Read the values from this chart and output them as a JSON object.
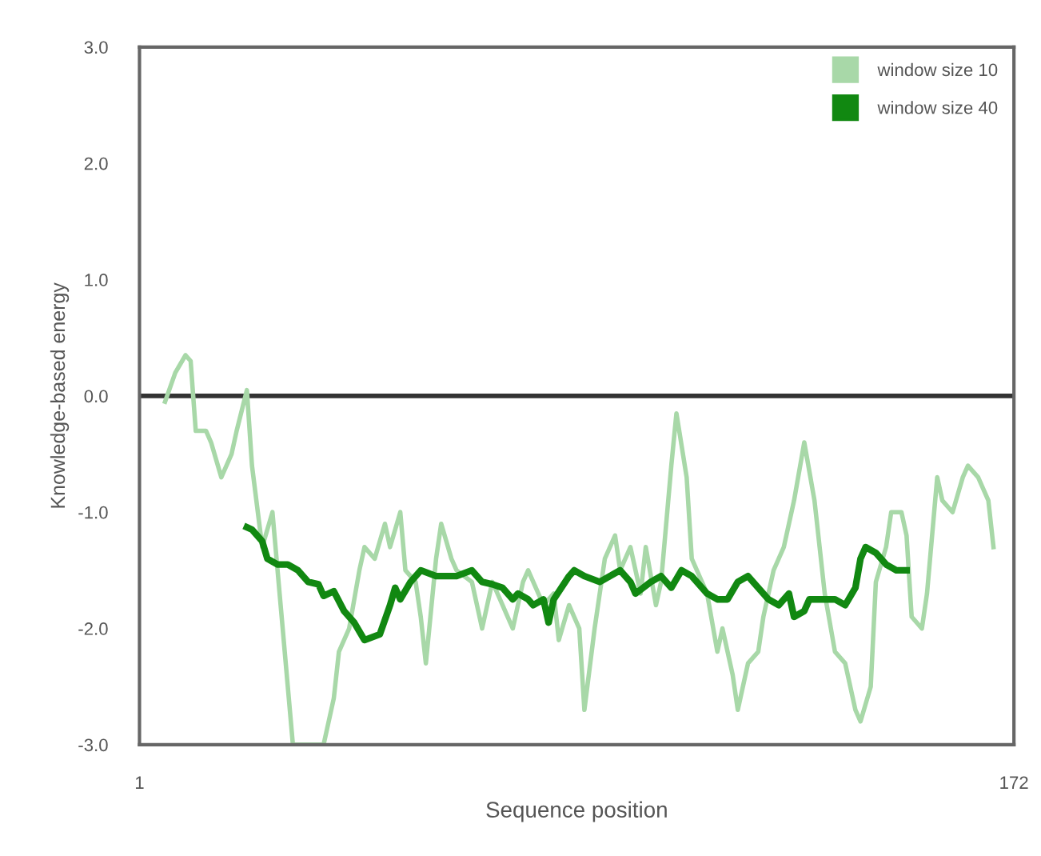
{
  "chart_data": {
    "type": "line",
    "xlabel": "Sequence position",
    "ylabel": "Knowledge-based energy",
    "xlim": [
      1,
      172
    ],
    "xticks": [
      1,
      172
    ],
    "ylim": [
      -3.0,
      3.0
    ],
    "yticks": [
      {
        "value": -3,
        "label": "-3.0"
      },
      {
        "value": -2,
        "label": "-2.0"
      },
      {
        "value": -1,
        "label": "-1.0"
      },
      {
        "value": 0,
        "label": "0.0"
      },
      {
        "value": 1,
        "label": "1.0"
      },
      {
        "value": 2,
        "label": "2.0"
      },
      {
        "value": 3,
        "label": "3.0"
      }
    ],
    "grid": false,
    "legend": "top right",
    "marker": "none",
    "line_style": "solid",
    "ref_lines": [
      {
        "axis": "y",
        "value": 0,
        "label": null,
        "color": "#333333"
      }
    ],
    "series": [
      {
        "name": "window size 10",
        "color": "#a8d8a8",
        "x": [
          6,
          8,
          10,
          11,
          12,
          14,
          15,
          17,
          19,
          20,
          22,
          23,
          25,
          27,
          29,
          30,
          31,
          33,
          37,
          39,
          40,
          42,
          44,
          45,
          47,
          49,
          50,
          52,
          53,
          55,
          56,
          57,
          59,
          60,
          62,
          63,
          66,
          68,
          70,
          72,
          73,
          74,
          76,
          77,
          79,
          80,
          82,
          83,
          85,
          87,
          88,
          90,
          92,
          94,
          95,
          97,
          99,
          100,
          102,
          103,
          105,
          106,
          108,
          109,
          111,
          112,
          114,
          115,
          117,
          118,
          120,
          122,
          123,
          125,
          127,
          129,
          131,
          133,
          134,
          135,
          137,
          139,
          141,
          142,
          144,
          145,
          147,
          148,
          150,
          151,
          152,
          154,
          155,
          157,
          158,
          160,
          162,
          163,
          165,
          167,
          168
        ],
        "values": [
          -0.05,
          0.2,
          0.35,
          0.3,
          -0.3,
          -0.3,
          -0.4,
          -0.7,
          -0.5,
          -0.3,
          0.05,
          -0.6,
          -1.3,
          -1.0,
          -2.0,
          -2.5,
          -3.0,
          -3.0,
          -3.0,
          -2.6,
          -2.2,
          -2.0,
          -1.5,
          -1.3,
          -1.4,
          -1.1,
          -1.3,
          -1.0,
          -1.5,
          -1.6,
          -1.9,
          -2.3,
          -1.4,
          -1.1,
          -1.4,
          -1.5,
          -1.6,
          -2.0,
          -1.6,
          -1.8,
          -1.9,
          -2.0,
          -1.6,
          -1.5,
          -1.7,
          -1.8,
          -1.7,
          -2.1,
          -1.8,
          -2.0,
          -2.7,
          -2.0,
          -1.4,
          -1.2,
          -1.5,
          -1.3,
          -1.7,
          -1.3,
          -1.8,
          -1.6,
          -0.6,
          -0.15,
          -0.7,
          -1.4,
          -1.6,
          -1.7,
          -2.2,
          -2.0,
          -2.4,
          -2.7,
          -2.3,
          -2.2,
          -1.9,
          -1.5,
          -1.3,
          -0.9,
          -0.4,
          -0.9,
          -1.3,
          -1.7,
          -2.2,
          -2.3,
          -2.7,
          -2.8,
          -2.5,
          -1.6,
          -1.3,
          -1.0,
          -1.0,
          -1.2,
          -1.9,
          -2.0,
          -1.7,
          -0.7,
          -0.9,
          -1.0,
          -0.7,
          -0.6,
          -0.7,
          -0.9,
          -1.3
        ]
      },
      {
        "name": "window size 40",
        "color": "#118811",
        "x": [
          22,
          23,
          25,
          26,
          28,
          30,
          32,
          34,
          36,
          37,
          39,
          41,
          43,
          45,
          48,
          50,
          51,
          52,
          54,
          56,
          59,
          61,
          63,
          66,
          68,
          70,
          72,
          74,
          75,
          77,
          78,
          80,
          81,
          82,
          85,
          86,
          88,
          91,
          93,
          95,
          97,
          98,
          101,
          103,
          105,
          107,
          109,
          112,
          114,
          116,
          118,
          120,
          122,
          124,
          126,
          128,
          129,
          131,
          132,
          135,
          137,
          139,
          141,
          142,
          143,
          145,
          147,
          149,
          151
        ],
        "values": [
          -1.13,
          -1.15,
          -1.25,
          -1.4,
          -1.45,
          -1.45,
          -1.5,
          -1.6,
          -1.62,
          -1.72,
          -1.68,
          -1.85,
          -1.95,
          -2.1,
          -2.05,
          -1.8,
          -1.65,
          -1.75,
          -1.6,
          -1.5,
          -1.55,
          -1.55,
          -1.55,
          -1.5,
          -1.6,
          -1.62,
          -1.65,
          -1.75,
          -1.7,
          -1.75,
          -1.8,
          -1.75,
          -1.95,
          -1.75,
          -1.55,
          -1.5,
          -1.55,
          -1.6,
          -1.55,
          -1.5,
          -1.6,
          -1.7,
          -1.6,
          -1.55,
          -1.65,
          -1.5,
          -1.55,
          -1.7,
          -1.75,
          -1.75,
          -1.6,
          -1.55,
          -1.65,
          -1.75,
          -1.8,
          -1.7,
          -1.9,
          -1.85,
          -1.75,
          -1.75,
          -1.75,
          -1.8,
          -1.65,
          -1.4,
          -1.3,
          -1.35,
          -1.45,
          -1.5,
          -1.5
        ]
      }
    ]
  }
}
